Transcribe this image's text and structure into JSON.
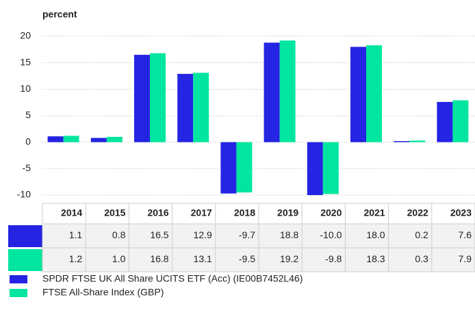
{
  "chart_data": {
    "type": "bar",
    "y_label": "percent",
    "categories": [
      "2014",
      "2015",
      "2016",
      "2017",
      "2018",
      "2019",
      "2020",
      "2021",
      "2022",
      "2023"
    ],
    "series": [
      {
        "name": "SPDR FTSE UK All Share UCITS ETF (Acc) (IE00B7452L46)",
        "color": "#2424e2",
        "values": [
          1.1,
          0.8,
          16.5,
          12.9,
          -9.7,
          18.8,
          -10.0,
          18.0,
          0.2,
          7.6
        ],
        "value_labels": [
          "1.1",
          "0.8",
          "16.5",
          "12.9",
          "-9.7",
          "18.8",
          "-10.0",
          "18.0",
          "0.2",
          "7.6"
        ]
      },
      {
        "name": "FTSE All-Share Index (GBP)",
        "color": "#00e6a0",
        "values": [
          1.2,
          1.0,
          16.8,
          13.1,
          -9.5,
          19.2,
          -9.8,
          18.3,
          0.3,
          7.9
        ],
        "value_labels": [
          "1.2",
          "1.0",
          "16.8",
          "13.1",
          "-9.5",
          "19.2",
          "-9.8",
          "18.3",
          "0.3",
          "7.9"
        ]
      }
    ],
    "ylim": [
      -10,
      20
    ],
    "yticks": [
      20,
      15,
      10,
      5,
      0,
      -5,
      -10
    ],
    "grid": true
  }
}
